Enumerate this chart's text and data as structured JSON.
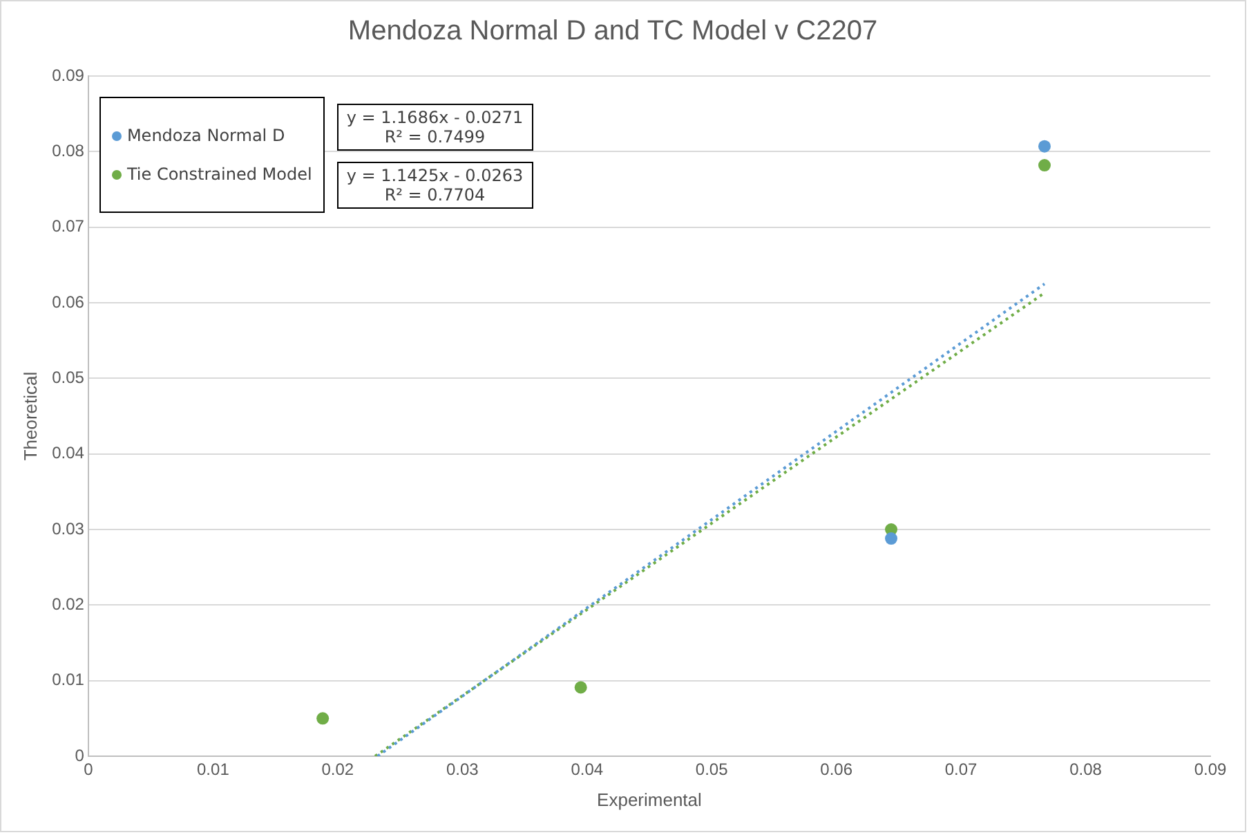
{
  "chart_data": {
    "type": "scatter",
    "title": "Mendoza Normal D and TC Model v C2207",
    "xlabel": "Experimental",
    "ylabel": "Theoretical",
    "xlim": [
      0,
      0.09
    ],
    "xticks": [
      0,
      0.01,
      0.02,
      0.03,
      0.04,
      0.05,
      0.06,
      0.07,
      0.08,
      0.09
    ],
    "ylim": [
      0,
      0.09
    ],
    "yticks": [
      0,
      0.01,
      0.02,
      0.03,
      0.04,
      0.05,
      0.06,
      0.07,
      0.08,
      0.09
    ],
    "grid": "y",
    "legend": "top left",
    "marker": "circle",
    "series": [
      {
        "name": "Mendoza Normal D",
        "color": "#5b9bd5",
        "x": [
          0.0644,
          0.0767
        ],
        "values": [
          0.0288,
          0.0807
        ]
      },
      {
        "name": "Tie Constrained Model",
        "color": "#70ad47",
        "x": [
          0.0188,
          0.0395,
          0.0644,
          0.0767
        ],
        "values": [
          0.005,
          0.0091,
          0.03,
          0.0782
        ]
      },
      {
        "type": "line",
        "line_style": "dotted",
        "marker": "none",
        "color": "#5b9bd5",
        "x": [
          0.0232,
          0.0767
        ],
        "values": [
          0,
          0.0625
        ]
      },
      {
        "type": "line",
        "line_style": "dotted",
        "marker": "none",
        "color": "#70ad47",
        "x": [
          0.023,
          0.0767
        ],
        "values": [
          0,
          0.0613
        ]
      }
    ],
    "annotations": [
      "y = 1.1686x - 0.0271\nR² = 0.7499",
      "y = 1.1425x - 0.0263\nR² = 0.7704"
    ]
  }
}
